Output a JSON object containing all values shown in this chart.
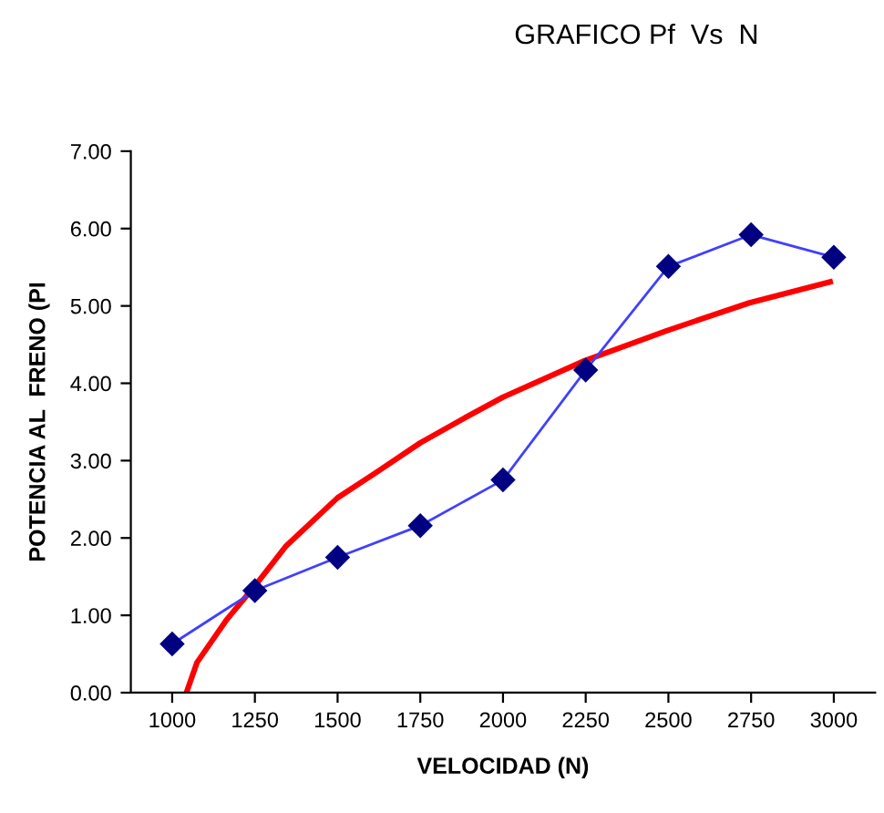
{
  "chart_data": {
    "type": "line",
    "title": "GRAFICO Pf  Vs  N",
    "xlabel": "VELOCIDAD (N)",
    "ylabel": "POTENCIA AL  FRENO (PI",
    "xlim": [
      875,
      3125
    ],
    "xticks": [
      1000,
      1250,
      1500,
      1750,
      2000,
      2250,
      2500,
      2750,
      3000
    ],
    "ylim": [
      0,
      7
    ],
    "yticks": [
      {
        "value": 0,
        "label": "0.00"
      },
      {
        "value": 1,
        "label": "1.00"
      },
      {
        "value": 2,
        "label": "2.00"
      },
      {
        "value": 3,
        "label": "3.00"
      },
      {
        "value": 4,
        "label": "4.00"
      },
      {
        "value": 5,
        "label": "5.00"
      },
      {
        "value": 6,
        "label": "6.00"
      },
      {
        "value": 7,
        "label": "7.00"
      }
    ],
    "grid": false,
    "legend": false,
    "series": [
      {
        "color": "#4040ff",
        "marker": "diamond",
        "x": [
          1000,
          1250,
          1500,
          1750,
          2000,
          2250,
          2500,
          2750,
          3000
        ],
        "values": [
          0.63,
          1.32,
          1.75,
          2.16,
          2.75,
          4.17,
          5.51,
          5.92,
          5.63
        ]
      },
      {
        "color": "#ff0000",
        "marker": "none",
        "x": [
          1043,
          1075,
          1164,
          1250,
          1343,
          1500,
          1611,
          1750,
          1879,
          2000,
          2246,
          2495,
          2745,
          2989
        ],
        "values": [
          0,
          0.39,
          0.94,
          1.38,
          1.89,
          2.52,
          2.83,
          3.23,
          3.54,
          3.82,
          4.29,
          4.68,
          5.04,
          5.31
        ]
      }
    ]
  }
}
